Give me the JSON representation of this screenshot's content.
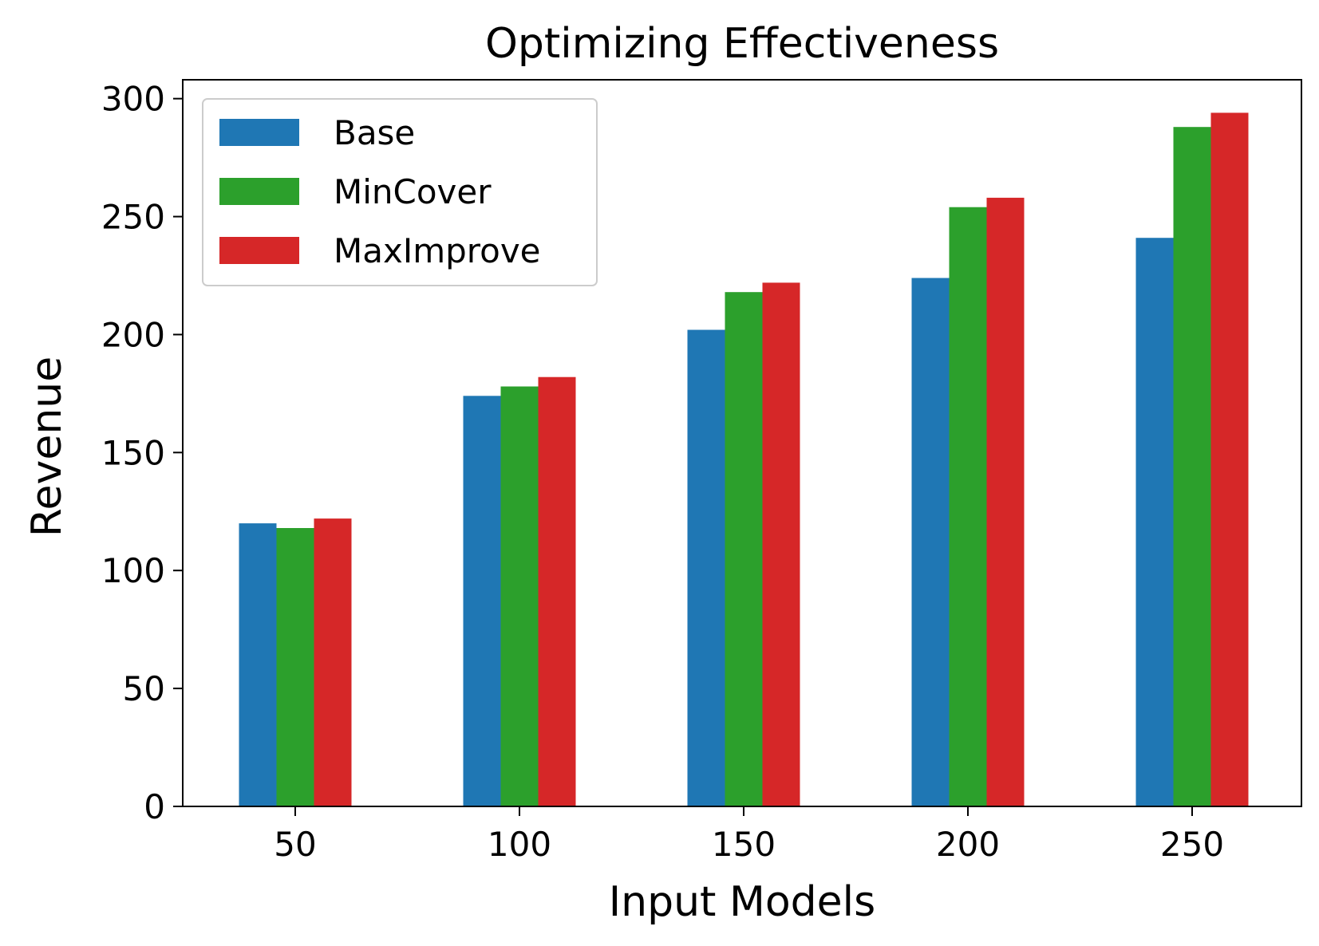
{
  "chart_data": {
    "type": "bar",
    "title": "Optimizing Effectiveness",
    "xlabel": "Input Models",
    "ylabel": "Revenue",
    "categories": [
      "50",
      "100",
      "150",
      "200",
      "250"
    ],
    "series": [
      {
        "name": "Base",
        "color": "#1f77b4",
        "values": [
          120,
          174,
          202,
          224,
          241
        ]
      },
      {
        "name": "MinCover",
        "color": "#2ca02c",
        "values": [
          118,
          178,
          218,
          254,
          288
        ]
      },
      {
        "name": "MaxImprove",
        "color": "#d62728",
        "values": [
          122,
          182,
          222,
          258,
          294
        ]
      }
    ],
    "ylim": [
      0,
      308
    ],
    "yticks": [
      0,
      50,
      100,
      150,
      200,
      250,
      300
    ],
    "grid": false,
    "legend_position": "upper-left"
  }
}
